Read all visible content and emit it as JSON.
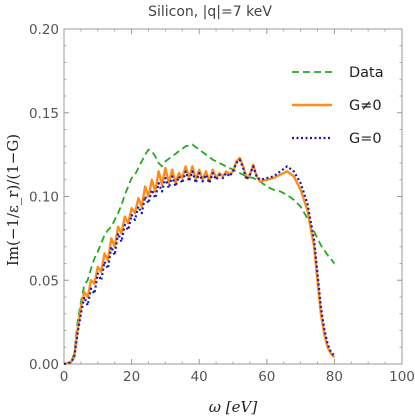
{
  "chart_data": {
    "type": "line",
    "title": "Silicon,  |q|=7 keV",
    "xlabel": "ω  [eV]",
    "ylabel": "Im(−1/ε_r)/(1−G)",
    "xlim": [
      0,
      100
    ],
    "ylim": [
      0,
      0.2
    ],
    "xticks": [
      "0",
      "20",
      "40",
      "60",
      "80",
      "100"
    ],
    "yticks": [
      "0.00",
      "0.05",
      "0.10",
      "0.15",
      "0.20"
    ],
    "legend_position": "top-right",
    "grid": false,
    "series": [
      {
        "name": "Data",
        "color": "#22aa22",
        "dash": "dashed",
        "points": [
          [
            0,
            0
          ],
          [
            2,
            0.001
          ],
          [
            3,
            0.006
          ],
          [
            4,
            0.025
          ],
          [
            5,
            0.037
          ],
          [
            6,
            0.047
          ],
          [
            7,
            0.05
          ],
          [
            8,
            0.057
          ],
          [
            9,
            0.063
          ],
          [
            10,
            0.067
          ],
          [
            11,
            0.072
          ],
          [
            12,
            0.077
          ],
          [
            13,
            0.08
          ],
          [
            14,
            0.082
          ],
          [
            15,
            0.086
          ],
          [
            16,
            0.09
          ],
          [
            17,
            0.095
          ],
          [
            18,
            0.101
          ],
          [
            19,
            0.106
          ],
          [
            20,
            0.111
          ],
          [
            21,
            0.113
          ],
          [
            22,
            0.117
          ],
          [
            23,
            0.121
          ],
          [
            24,
            0.125
          ],
          [
            25,
            0.128
          ],
          [
            26,
            0.127
          ],
          [
            27,
            0.124
          ],
          [
            28,
            0.12
          ],
          [
            29,
            0.118
          ],
          [
            30,
            0.121
          ],
          [
            32,
            0.124
          ],
          [
            34,
            0.127
          ],
          [
            36,
            0.13
          ],
          [
            38,
            0.131
          ],
          [
            40,
            0.128
          ],
          [
            42,
            0.125
          ],
          [
            44,
            0.122
          ],
          [
            46,
            0.12
          ],
          [
            48,
            0.118
          ],
          [
            50,
            0.116
          ],
          [
            52,
            0.114
          ],
          [
            54,
            0.112
          ],
          [
            56,
            0.111
          ],
          [
            58,
            0.109
          ],
          [
            60,
            0.106
          ],
          [
            62,
            0.104
          ],
          [
            64,
            0.103
          ],
          [
            66,
            0.101
          ],
          [
            68,
            0.098
          ],
          [
            70,
            0.094
          ],
          [
            72,
            0.087
          ],
          [
            74,
            0.079
          ],
          [
            76,
            0.071
          ],
          [
            78,
            0.065
          ],
          [
            80,
            0.06
          ]
        ]
      },
      {
        "name": "G≠0",
        "color": "#ff8c1a",
        "dash": "solid",
        "points": [
          [
            0,
            0
          ],
          [
            2,
            0.001
          ],
          [
            3,
            0.004
          ],
          [
            4,
            0.02
          ],
          [
            5,
            0.034
          ],
          [
            6,
            0.043
          ],
          [
            7,
            0.04
          ],
          [
            8,
            0.05
          ],
          [
            9,
            0.048
          ],
          [
            10,
            0.058
          ],
          [
            11,
            0.055
          ],
          [
            12,
            0.066
          ],
          [
            13,
            0.062
          ],
          [
            14,
            0.075
          ],
          [
            15,
            0.07
          ],
          [
            16,
            0.082
          ],
          [
            17,
            0.078
          ],
          [
            18,
            0.088
          ],
          [
            19,
            0.084
          ],
          [
            20,
            0.093
          ],
          [
            21,
            0.09
          ],
          [
            22,
            0.099
          ],
          [
            23,
            0.094
          ],
          [
            24,
            0.106
          ],
          [
            25,
            0.1
          ],
          [
            26,
            0.11
          ],
          [
            27,
            0.103
          ],
          [
            28,
            0.115
          ],
          [
            29,
            0.107
          ],
          [
            30,
            0.117
          ],
          [
            31,
            0.108
          ],
          [
            32,
            0.116
          ],
          [
            33,
            0.108
          ],
          [
            34,
            0.114
          ],
          [
            35,
            0.111
          ],
          [
            36,
            0.118
          ],
          [
            37,
            0.111
          ],
          [
            38,
            0.118
          ],
          [
            39,
            0.11
          ],
          [
            40,
            0.116
          ],
          [
            41,
            0.11
          ],
          [
            42,
            0.115
          ],
          [
            43,
            0.109
          ],
          [
            44,
            0.116
          ],
          [
            45,
            0.111
          ],
          [
            46,
            0.114
          ],
          [
            47,
            0.112
          ],
          [
            48,
            0.115
          ],
          [
            49,
            0.113
          ],
          [
            50,
            0.115
          ],
          [
            51,
            0.121
          ],
          [
            52,
            0.123
          ],
          [
            53,
            0.118
          ],
          [
            54,
            0.111
          ],
          [
            55,
            0.113
          ],
          [
            56,
            0.119
          ],
          [
            57,
            0.112
          ],
          [
            58,
            0.109
          ],
          [
            60,
            0.11
          ],
          [
            62,
            0.111
          ],
          [
            64,
            0.113
          ],
          [
            66,
            0.115
          ],
          [
            68,
            0.112
          ],
          [
            70,
            0.104
          ],
          [
            72,
            0.092
          ],
          [
            74,
            0.07
          ],
          [
            75,
            0.05
          ],
          [
            76,
            0.03
          ],
          [
            77,
            0.018
          ],
          [
            78,
            0.01
          ],
          [
            79,
            0.006
          ],
          [
            80,
            0.004
          ]
        ]
      },
      {
        "name": "G=0",
        "color": "#1a1aaa",
        "dash": "dotted",
        "points": [
          [
            0,
            0
          ],
          [
            2,
            0.001
          ],
          [
            3,
            0.004
          ],
          [
            4,
            0.018
          ],
          [
            5,
            0.03
          ],
          [
            6,
            0.04
          ],
          [
            7,
            0.035
          ],
          [
            8,
            0.045
          ],
          [
            9,
            0.042
          ],
          [
            10,
            0.054
          ],
          [
            11,
            0.05
          ],
          [
            12,
            0.061
          ],
          [
            13,
            0.057
          ],
          [
            14,
            0.07
          ],
          [
            15,
            0.065
          ],
          [
            16,
            0.078
          ],
          [
            17,
            0.073
          ],
          [
            18,
            0.083
          ],
          [
            19,
            0.08
          ],
          [
            20,
            0.089
          ],
          [
            21,
            0.086
          ],
          [
            22,
            0.094
          ],
          [
            23,
            0.09
          ],
          [
            24,
            0.1
          ],
          [
            25,
            0.096
          ],
          [
            26,
            0.104
          ],
          [
            27,
            0.099
          ],
          [
            28,
            0.108
          ],
          [
            29,
            0.103
          ],
          [
            30,
            0.111
          ],
          [
            31,
            0.105
          ],
          [
            32,
            0.112
          ],
          [
            33,
            0.106
          ],
          [
            34,
            0.112
          ],
          [
            35,
            0.108
          ],
          [
            36,
            0.115
          ],
          [
            37,
            0.109
          ],
          [
            38,
            0.115
          ],
          [
            39,
            0.108
          ],
          [
            40,
            0.114
          ],
          [
            41,
            0.109
          ],
          [
            42,
            0.113
          ],
          [
            43,
            0.108
          ],
          [
            44,
            0.114
          ],
          [
            45,
            0.11
          ],
          [
            46,
            0.113
          ],
          [
            47,
            0.111
          ],
          [
            48,
            0.114
          ],
          [
            49,
            0.112
          ],
          [
            50,
            0.115
          ],
          [
            51,
            0.12
          ],
          [
            52,
            0.122
          ],
          [
            53,
            0.117
          ],
          [
            54,
            0.11
          ],
          [
            55,
            0.113
          ],
          [
            56,
            0.118
          ],
          [
            57,
            0.112
          ],
          [
            58,
            0.11
          ],
          [
            60,
            0.111
          ],
          [
            62,
            0.112
          ],
          [
            64,
            0.115
          ],
          [
            66,
            0.118
          ],
          [
            68,
            0.115
          ],
          [
            70,
            0.108
          ],
          [
            72,
            0.096
          ],
          [
            74,
            0.074
          ],
          [
            75,
            0.054
          ],
          [
            76,
            0.034
          ],
          [
            77,
            0.021
          ],
          [
            78,
            0.012
          ],
          [
            79,
            0.007
          ],
          [
            80,
            0.005
          ]
        ]
      }
    ]
  }
}
